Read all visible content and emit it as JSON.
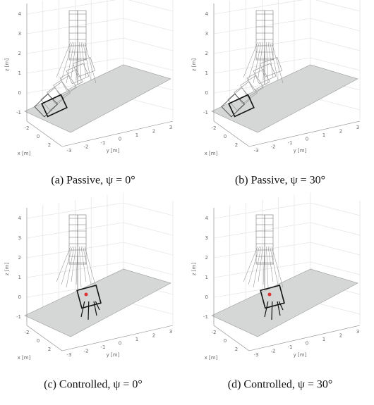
{
  "panels": [
    {
      "caption": "(a) Passive, ψ = 0°",
      "z_label": "z [m]",
      "x_label": "x [m]",
      "y_label": "y [m]",
      "z_ticks": [
        "4",
        "3",
        "2",
        "1",
        "0",
        "-1"
      ],
      "x_ticks": [
        "-2",
        "0",
        "2"
      ],
      "y_ticks": [
        "-3",
        "-2",
        "-1",
        "0",
        "1",
        "2",
        "3"
      ]
    },
    {
      "caption": "(b) Passive, ψ = 30°",
      "z_label": "z [m]",
      "x_label": "x [m]",
      "y_label": "y [m]",
      "z_ticks": [
        "4",
        "3",
        "2",
        "1",
        "0",
        "-1"
      ],
      "x_ticks": [
        "-2",
        "0",
        "2"
      ],
      "y_ticks": [
        "-3",
        "-2",
        "-1",
        "0",
        "1",
        "2",
        "3"
      ]
    },
    {
      "caption": "(c) Controlled, ψ = 0°",
      "z_label": "z [m]",
      "x_label": "x [m]",
      "y_label": "y [m]",
      "z_ticks": [
        "4",
        "3",
        "2",
        "1",
        "0",
        "-1"
      ],
      "x_ticks": [
        "-2",
        "0",
        "2"
      ],
      "y_ticks": [
        "-3",
        "-2",
        "-1",
        "0",
        "1",
        "2",
        "3"
      ]
    },
    {
      "caption": "(d) Controlled, ψ = 30°",
      "z_label": "z [m]",
      "x_label": "x [m]",
      "y_label": "y [m]",
      "z_ticks": [
        "4",
        "3",
        "2",
        "1",
        "0",
        "-1"
      ],
      "x_ticks": [
        "-2",
        "0",
        "2"
      ],
      "y_ticks": [
        "-3",
        "-2",
        "-1",
        "0",
        "1",
        "2",
        "3"
      ]
    }
  ]
}
